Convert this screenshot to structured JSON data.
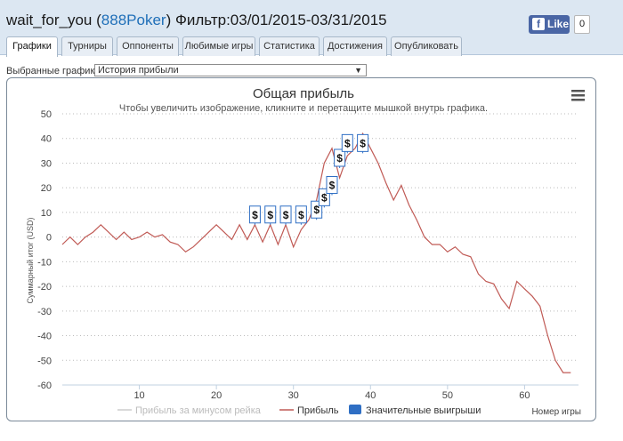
{
  "header": {
    "user": "wait_for_you",
    "site": "888Poker",
    "filter_label": "Фильтр:03/01/2015-03/31/2015",
    "fb_like": "Like",
    "fb_count": "0"
  },
  "tabs": [
    {
      "label": "Графики",
      "active": true
    },
    {
      "label": "Турниры"
    },
    {
      "label": "Оппоненты"
    },
    {
      "label": "Любимые игры"
    },
    {
      "label": "Статистика"
    },
    {
      "label": "Достижения"
    },
    {
      "label": "Опубликовать"
    }
  ],
  "graph_select": {
    "label": "Выбранные графики:",
    "value": "История прибыли"
  },
  "colors": {
    "profit_line": "#c05a55",
    "rake_line": "#cccccc",
    "big_wins": "#2f6fc4"
  },
  "menu_icon": "hamburger-icon",
  "chart_data": {
    "type": "line",
    "title": "Общая прибыль",
    "subtitle": "Чтобы увеличить изображение, кликните и перетащите мышкой внутрь графика.",
    "xlabel": "Номер игры",
    "ylabel": "Суммарный итог (USD)",
    "xlim": [
      0,
      67
    ],
    "ylim": [
      -60,
      50
    ],
    "x_ticks": [
      10,
      20,
      30,
      40,
      50,
      60
    ],
    "y_ticks": [
      50,
      40,
      30,
      20,
      10,
      0,
      -10,
      -20,
      -30,
      -40,
      -50,
      -60
    ],
    "grid": true,
    "legend": [
      "Прибыль за минусом рейка",
      "Прибыль",
      "Значительные выигрыши"
    ],
    "legend_position": "bottom",
    "series": [
      {
        "name": "Прибыль",
        "x": [
          0,
          1,
          2,
          3,
          4,
          5,
          6,
          7,
          8,
          9,
          10,
          11,
          12,
          13,
          14,
          15,
          16,
          17,
          18,
          19,
          20,
          21,
          22,
          23,
          24,
          25,
          26,
          27,
          28,
          29,
          30,
          31,
          32,
          33,
          34,
          35,
          36,
          37,
          38,
          39,
          40,
          41,
          42,
          43,
          44,
          45,
          46,
          47,
          48,
          49,
          50,
          51,
          52,
          53,
          54,
          55,
          56,
          57,
          58,
          59,
          60,
          61,
          62,
          63,
          64,
          65,
          66
        ],
        "y": [
          -3,
          0,
          -3,
          0,
          2,
          5,
          2,
          -1,
          2,
          -1,
          0,
          2,
          0,
          1,
          -2,
          -3,
          -6,
          -4,
          -1,
          2,
          5,
          2,
          -1,
          5,
          -1,
          5,
          -2,
          5,
          -3,
          5,
          -4,
          3,
          7,
          15,
          30,
          36,
          24,
          33,
          36,
          42,
          36,
          30,
          22,
          15,
          21,
          13,
          7,
          0,
          -3,
          -3,
          -6,
          -4,
          -7,
          -8,
          -15,
          -18,
          -19,
          -25,
          -29,
          -18,
          -21,
          -24,
          -28,
          -40,
          -50,
          -55,
          -55
        ]
      }
    ],
    "big_wins": [
      {
        "x": 25,
        "y": 5
      },
      {
        "x": 27,
        "y": 5
      },
      {
        "x": 29,
        "y": 5
      },
      {
        "x": 31,
        "y": 5
      },
      {
        "x": 33,
        "y": 7
      },
      {
        "x": 34,
        "y": 12
      },
      {
        "x": 35,
        "y": 17
      },
      {
        "x": 36,
        "y": 28
      },
      {
        "x": 37,
        "y": 34
      },
      {
        "x": 39,
        "y": 34
      }
    ]
  }
}
